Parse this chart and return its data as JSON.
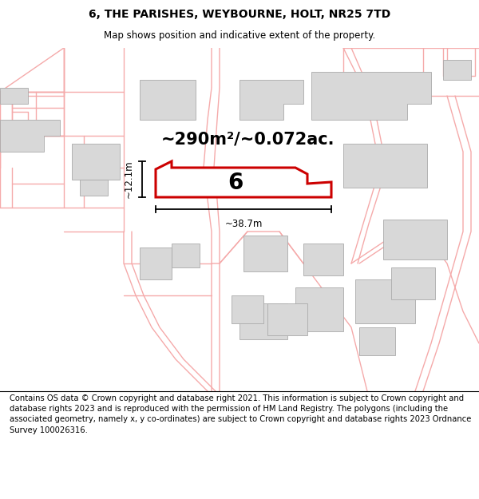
{
  "title": "6, THE PARISHES, WEYBOURNE, HOLT, NR25 7TD",
  "subtitle": "Map shows position and indicative extent of the property.",
  "footer": "Contains OS data © Crown copyright and database right 2021. This information is subject to Crown copyright and database rights 2023 and is reproduced with the permission of HM Land Registry. The polygons (including the associated geometry, namely x, y co-ordinates) are subject to Crown copyright and database rights 2023 Ordnance Survey 100026316.",
  "area_label": "~290m²/~0.072ac.",
  "width_label": "~38.7m",
  "height_label": "~12.1m",
  "plot_number": "6",
  "plot_fill": "#ffffff",
  "plot_border": "#cc0000",
  "building_fill": "#d8d8d8",
  "building_edge": "#aaaaaa",
  "road_color": "#f5aaaa",
  "title_fontsize": 10,
  "subtitle_fontsize": 8.5,
  "footer_fontsize": 7.2,
  "area_label_fontsize": 15,
  "plot_number_fontsize": 20,
  "dim_fontsize": 8.5
}
